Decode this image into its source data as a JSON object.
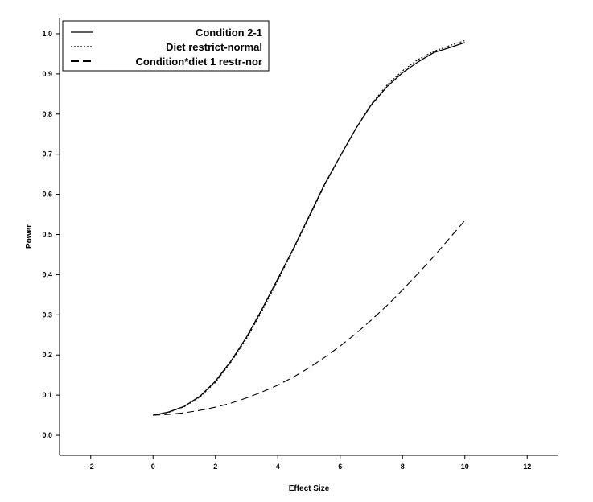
{
  "chart_data": {
    "type": "line",
    "title": "",
    "xlabel": "Effect Size",
    "ylabel": "Power",
    "xlim": [
      -3,
      13
    ],
    "ylim": [
      -0.05,
      1.04
    ],
    "x_ticks": [
      -2,
      0,
      2,
      4,
      6,
      8,
      10,
      12
    ],
    "y_ticks": [
      0.0,
      0.1,
      0.2,
      0.3,
      0.4,
      0.5,
      0.6,
      0.7,
      0.8,
      0.9,
      1.0
    ],
    "x_tick_labels": [
      "-2",
      "0",
      "2",
      "4",
      "6",
      "8",
      "10",
      "12"
    ],
    "y_tick_labels": [
      "0.0",
      "0.1",
      "0.2",
      "0.3",
      "0.4",
      "0.5",
      "0.6",
      "0.7",
      "0.8",
      "0.9",
      "1.0"
    ],
    "grid": false,
    "legend_position": "top-left",
    "series": [
      {
        "name": "Condition 2-1",
        "line_style": "solid",
        "x": [
          0,
          0.5,
          1,
          1.5,
          2,
          2.5,
          3,
          3.5,
          4,
          4.5,
          5,
          5.5,
          6,
          6.5,
          7,
          7.5,
          8,
          8.5,
          9,
          9.5,
          10
        ],
        "y": [
          0.05,
          0.058,
          0.072,
          0.097,
          0.135,
          0.185,
          0.245,
          0.315,
          0.39,
          0.465,
          0.545,
          0.625,
          0.695,
          0.763,
          0.823,
          0.868,
          0.903,
          0.93,
          0.953,
          0.965,
          0.978
        ]
      },
      {
        "name": "Diet restrict-normal",
        "line_style": "dotted",
        "x": [
          0,
          0.5,
          1,
          1.5,
          2,
          2.5,
          3,
          3.5,
          4,
          4.5,
          5,
          5.5,
          6,
          6.5,
          7,
          7.5,
          8,
          8.5,
          9,
          9.5,
          10
        ],
        "y": [
          0.05,
          0.057,
          0.071,
          0.095,
          0.132,
          0.182,
          0.241,
          0.31,
          0.385,
          0.462,
          0.542,
          0.622,
          0.695,
          0.764,
          0.825,
          0.872,
          0.908,
          0.936,
          0.956,
          0.97,
          0.983
        ]
      },
      {
        "name": "Condition*diet 1 restr-nor",
        "line_style": "dashed",
        "x": [
          0,
          0.5,
          1,
          1.5,
          2,
          2.5,
          3,
          3.5,
          4,
          4.5,
          5,
          5.5,
          6,
          6.5,
          7,
          7.5,
          8,
          8.5,
          9,
          9.5,
          10
        ],
        "y": [
          0.05,
          0.052,
          0.056,
          0.062,
          0.07,
          0.08,
          0.093,
          0.108,
          0.125,
          0.145,
          0.168,
          0.194,
          0.222,
          0.253,
          0.287,
          0.323,
          0.362,
          0.403,
          0.445,
          0.49,
          0.535
        ]
      }
    ]
  }
}
